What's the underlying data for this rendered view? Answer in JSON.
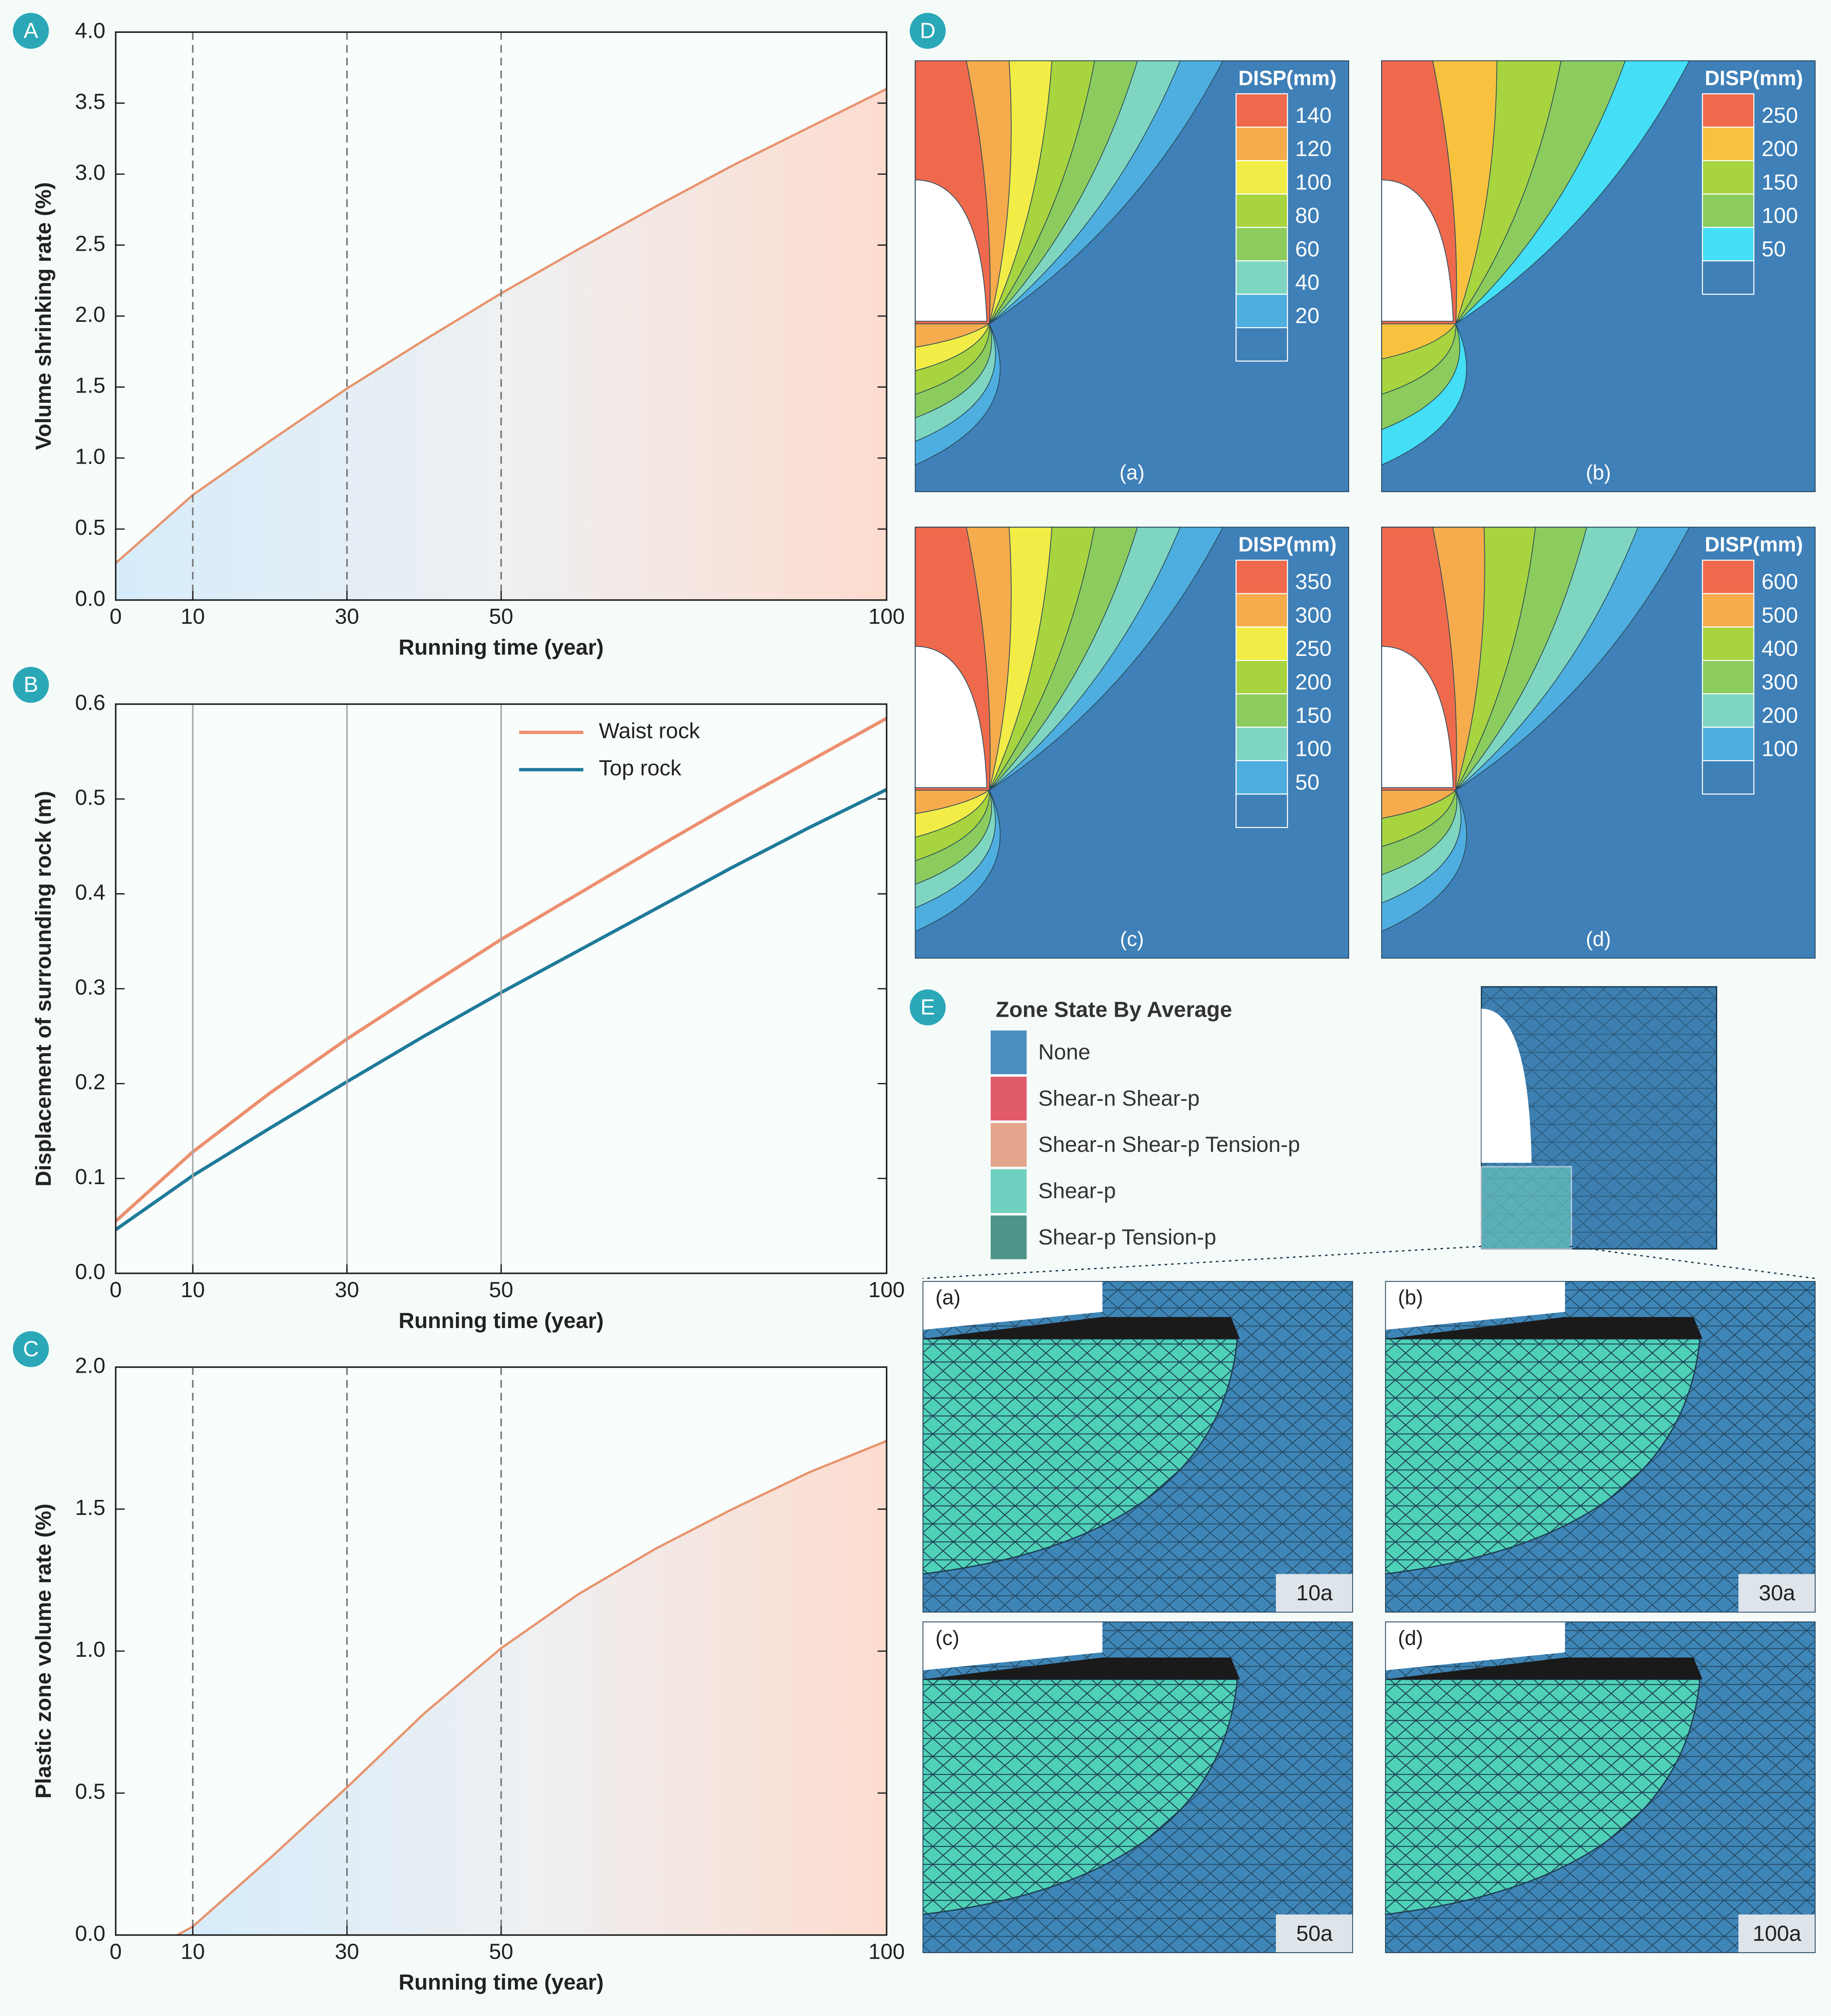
{
  "chart_data": [
    {
      "type": "area",
      "panel_label": "A",
      "x_label": "Running time (year)",
      "y_label": "Volume shrinking rate (%)",
      "x": [
        0,
        10,
        20,
        30,
        40,
        50,
        60,
        70,
        80,
        90,
        100
      ],
      "series": [
        {
          "color": "#e8946e",
          "values": [
            0.26,
            0.74,
            1.12,
            1.49,
            1.83,
            2.16,
            2.47,
            2.77,
            3.06,
            3.33,
            3.6
          ]
        }
      ],
      "xlim": [
        0,
        100
      ],
      "xticks": [
        0,
        10,
        30,
        50,
        100
      ],
      "ylim": [
        0,
        4
      ],
      "yticks": [
        {
          "value": 0,
          "label": "0.0"
        },
        0.5,
        {
          "value": 1,
          "label": "1.0"
        },
        1.5,
        {
          "value": 2,
          "label": "2.0"
        },
        2.5,
        {
          "value": 3,
          "label": "3.0"
        },
        3.5,
        {
          "value": 4,
          "label": "4.0"
        }
      ],
      "vlines": [
        10,
        30,
        50
      ],
      "vline_style": "dashed"
    },
    {
      "type": "line",
      "panel_label": "B",
      "x_label": "Running time (year)",
      "y_label": "Displacement of surrounding rock (m)",
      "x": [
        0,
        10,
        20,
        30,
        40,
        50,
        60,
        70,
        80,
        90,
        100
      ],
      "series": [
        {
          "name": "Waist rock",
          "color": "#ec9070",
          "values": [
            0.055,
            0.128,
            0.19,
            0.247,
            0.3,
            0.352,
            0.4,
            0.448,
            0.495,
            0.54,
            0.585
          ]
        },
        {
          "name": "Top rock",
          "color": "#1f7a9a",
          "values": [
            0.046,
            0.103,
            0.153,
            0.202,
            0.25,
            0.296,
            0.34,
            0.384,
            0.428,
            0.47,
            0.51
          ]
        }
      ],
      "legend": "upper right",
      "xlim": [
        0,
        100
      ],
      "xticks": [
        0,
        10,
        30,
        50,
        100
      ],
      "ylim": [
        0,
        0.6
      ],
      "yticks": [
        {
          "value": 0,
          "label": "0.0"
        },
        0.1,
        0.2,
        0.3,
        0.4,
        0.5,
        0.6
      ],
      "vlines": [
        10,
        30,
        50
      ],
      "vline_style": "solid"
    },
    {
      "type": "area",
      "panel_label": "C",
      "x_label": "Running time (year)",
      "y_label": "Plastic zone volume rate (%)",
      "x": [
        8,
        10,
        20,
        30,
        40,
        50,
        60,
        70,
        80,
        90,
        100
      ],
      "series": [
        {
          "color": "#e8946e",
          "values": [
            0,
            0.03,
            0.27,
            0.52,
            0.78,
            1.01,
            1.2,
            1.36,
            1.5,
            1.63,
            1.74
          ]
        }
      ],
      "xlim": [
        0,
        100
      ],
      "xticks": [
        0,
        10,
        30,
        50,
        100
      ],
      "ylim": [
        0,
        2
      ],
      "yticks": [
        {
          "value": 0,
          "label": "0.0"
        },
        0.5,
        {
          "value": 1,
          "label": "1.0"
        },
        1.5,
        {
          "value": 2,
          "label": "2.0"
        }
      ],
      "vlines": [
        10,
        30,
        50
      ],
      "vline_style": "dashed"
    }
  ],
  "contour_panels": {
    "panel_label": "D",
    "items": [
      {
        "caption": "(a)",
        "colorbar_title": "DISP(mm)",
        "colorbar_ticks": [
          140,
          120,
          100,
          80,
          60,
          40,
          20
        ],
        "colors": [
          "#ef6a4c",
          "#f6ab4c",
          "#f2ec47",
          "#a8d43f",
          "#8ccc5e",
          "#7fd6c0",
          "#4eaee0",
          "#3f80b8"
        ]
      },
      {
        "caption": "(b)",
        "colorbar_title": "DISP(mm)",
        "colorbar_ticks": [
          250,
          200,
          150,
          100,
          50
        ],
        "colors": [
          "#ef6a4c",
          "#f8c23f",
          "#a8d43f",
          "#8ccc5e",
          "#44def6",
          "#3f80b8"
        ]
      },
      {
        "caption": "(c)",
        "colorbar_title": "DISP(mm)",
        "colorbar_ticks": [
          350,
          300,
          250,
          200,
          150,
          100,
          50
        ],
        "colors": [
          "#ef6a4c",
          "#f6ab4c",
          "#f2ec47",
          "#a8d43f",
          "#8ccc5e",
          "#7fd6c0",
          "#4eaee0",
          "#3f80b8"
        ]
      },
      {
        "caption": "(d)",
        "colorbar_title": "DISP(mm)",
        "colorbar_ticks": [
          600,
          500,
          400,
          300,
          200,
          100
        ],
        "colors": [
          "#ef6a4c",
          "#f6ab4c",
          "#a8d43f",
          "#8ccc5e",
          "#7fd6c0",
          "#4eaee0",
          "#3f80b8"
        ]
      }
    ]
  },
  "zone_panels": {
    "panel_label": "E",
    "legend_title": "Zone State By Average",
    "legend": [
      {
        "name": "None",
        "color": "#4a8ec0"
      },
      {
        "name": "Shear-n Shear-p",
        "color": "#e05a6a"
      },
      {
        "name": "Shear-n Shear-p Tension-p",
        "color": "#e5a58c"
      },
      {
        "name": "Shear-p",
        "color": "#6fd0c0"
      },
      {
        "name": "Shear-p Tension-p",
        "color": "#4e9488"
      }
    ],
    "items": [
      {
        "caption": "(a)",
        "time": "10a"
      },
      {
        "caption": "(b)",
        "time": "30a"
      },
      {
        "caption": "(c)",
        "time": "50a"
      },
      {
        "caption": "(d)",
        "time": "100a"
      }
    ]
  }
}
